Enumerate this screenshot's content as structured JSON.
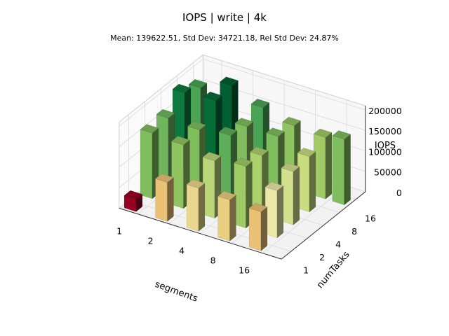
{
  "chart_data": {
    "type": "bar3d",
    "title": "IOPS | write | 4k",
    "subtitle": "Mean: 139622.51, Std Dev: 34721.18, Rel Std Dev: 24.87%",
    "xlabel": "segments",
    "ylabel": "numTasks",
    "zlabel": "IOPS",
    "x_categories": [
      "1",
      "2",
      "4",
      "8",
      "16"
    ],
    "y_categories": [
      "1",
      "2",
      "4",
      "8",
      "16"
    ],
    "z_ticks": [
      "0",
      "50000",
      "100000",
      "150000",
      "200000"
    ],
    "zlim": [
      0,
      210000
    ],
    "colormap": "RdYlGn",
    "values": [
      [
        30000,
        160000,
        165000,
        195000,
        175000
      ],
      [
        95000,
        155000,
        160000,
        200000,
        205000
      ],
      [
        105000,
        140000,
        170000,
        160000,
        175000
      ],
      [
        100000,
        150000,
        145000,
        160000,
        155000
      ],
      [
        95000,
        115000,
        130000,
        135000,
        150000
      ]
    ],
    "extra_bar": {
      "segments": "16",
      "numTasks": "16",
      "value": 160000
    }
  }
}
